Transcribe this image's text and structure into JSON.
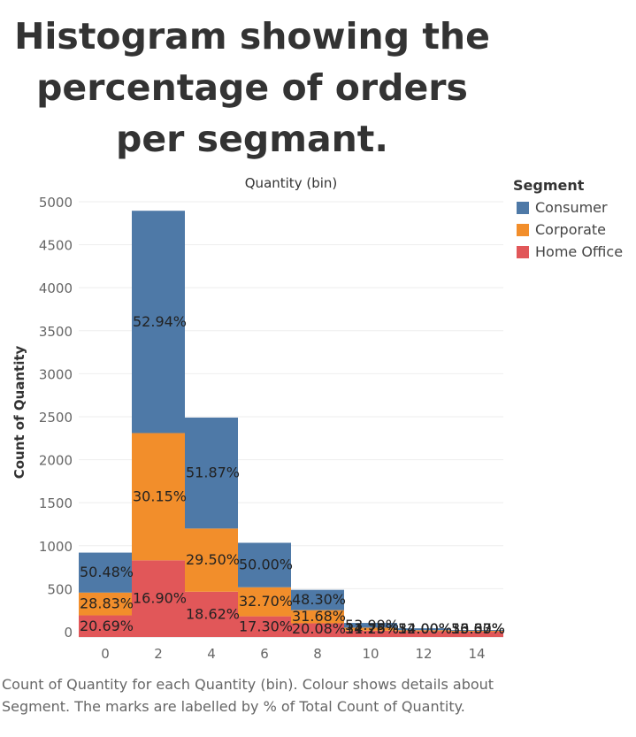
{
  "title": "Histogram showing the percentage of orders per segmant.",
  "footnote": "Count of Quantity for each Quantity (bin).  Colour shows details about Segment.  The marks are labelled by % of Total Count of Quantity.",
  "legend": {
    "title": "Segment",
    "items": [
      {
        "name": "Consumer",
        "color": "#4E79A7"
      },
      {
        "name": "Corporate",
        "color": "#F28E2B"
      },
      {
        "name": "Home Office",
        "color": "#E15759"
      }
    ]
  },
  "chart_data": {
    "type": "bar",
    "stacked": true,
    "title": "Quantity (bin)",
    "xlabel": "",
    "ylabel": "Count of Quantity",
    "ylim": [
      0,
      5000
    ],
    "yticks": [
      0,
      500,
      1000,
      1500,
      2000,
      2500,
      3000,
      3500,
      4000,
      4500,
      5000
    ],
    "categories": [
      "0",
      "2",
      "4",
      "6",
      "8",
      "10",
      "12",
      "14"
    ],
    "series": [
      {
        "name": "Home Office",
        "color": "#E15759",
        "values": [
          190,
          830,
          465,
          179,
          98,
          12,
          5,
          3
        ],
        "labels": [
          "20.69%",
          "16.90%",
          "18.62%",
          "17.30%",
          "20.08%",
          "11.76%",
          "14.00%",
          "16.67%"
        ]
      },
      {
        "name": "Corporate",
        "color": "#F28E2B",
        "values": [
          265,
          1480,
          735,
          338,
          153,
          35,
          13,
          7
        ],
        "labels": [
          "28.83%",
          "30.15%",
          "29.50%",
          "32.70%",
          "31.68%",
          "34.25%",
          "32.00%",
          "33.33%"
        ]
      },
      {
        "name": "Consumer",
        "color": "#4E79A7",
        "values": [
          465,
          2585,
          1290,
          517,
          236,
          55,
          22,
          10
        ],
        "labels": [
          "50.48%",
          "52.94%",
          "51.87%",
          "50.00%",
          "48.30%",
          "53.99%",
          "54.00%",
          "50.00%"
        ]
      }
    ]
  }
}
